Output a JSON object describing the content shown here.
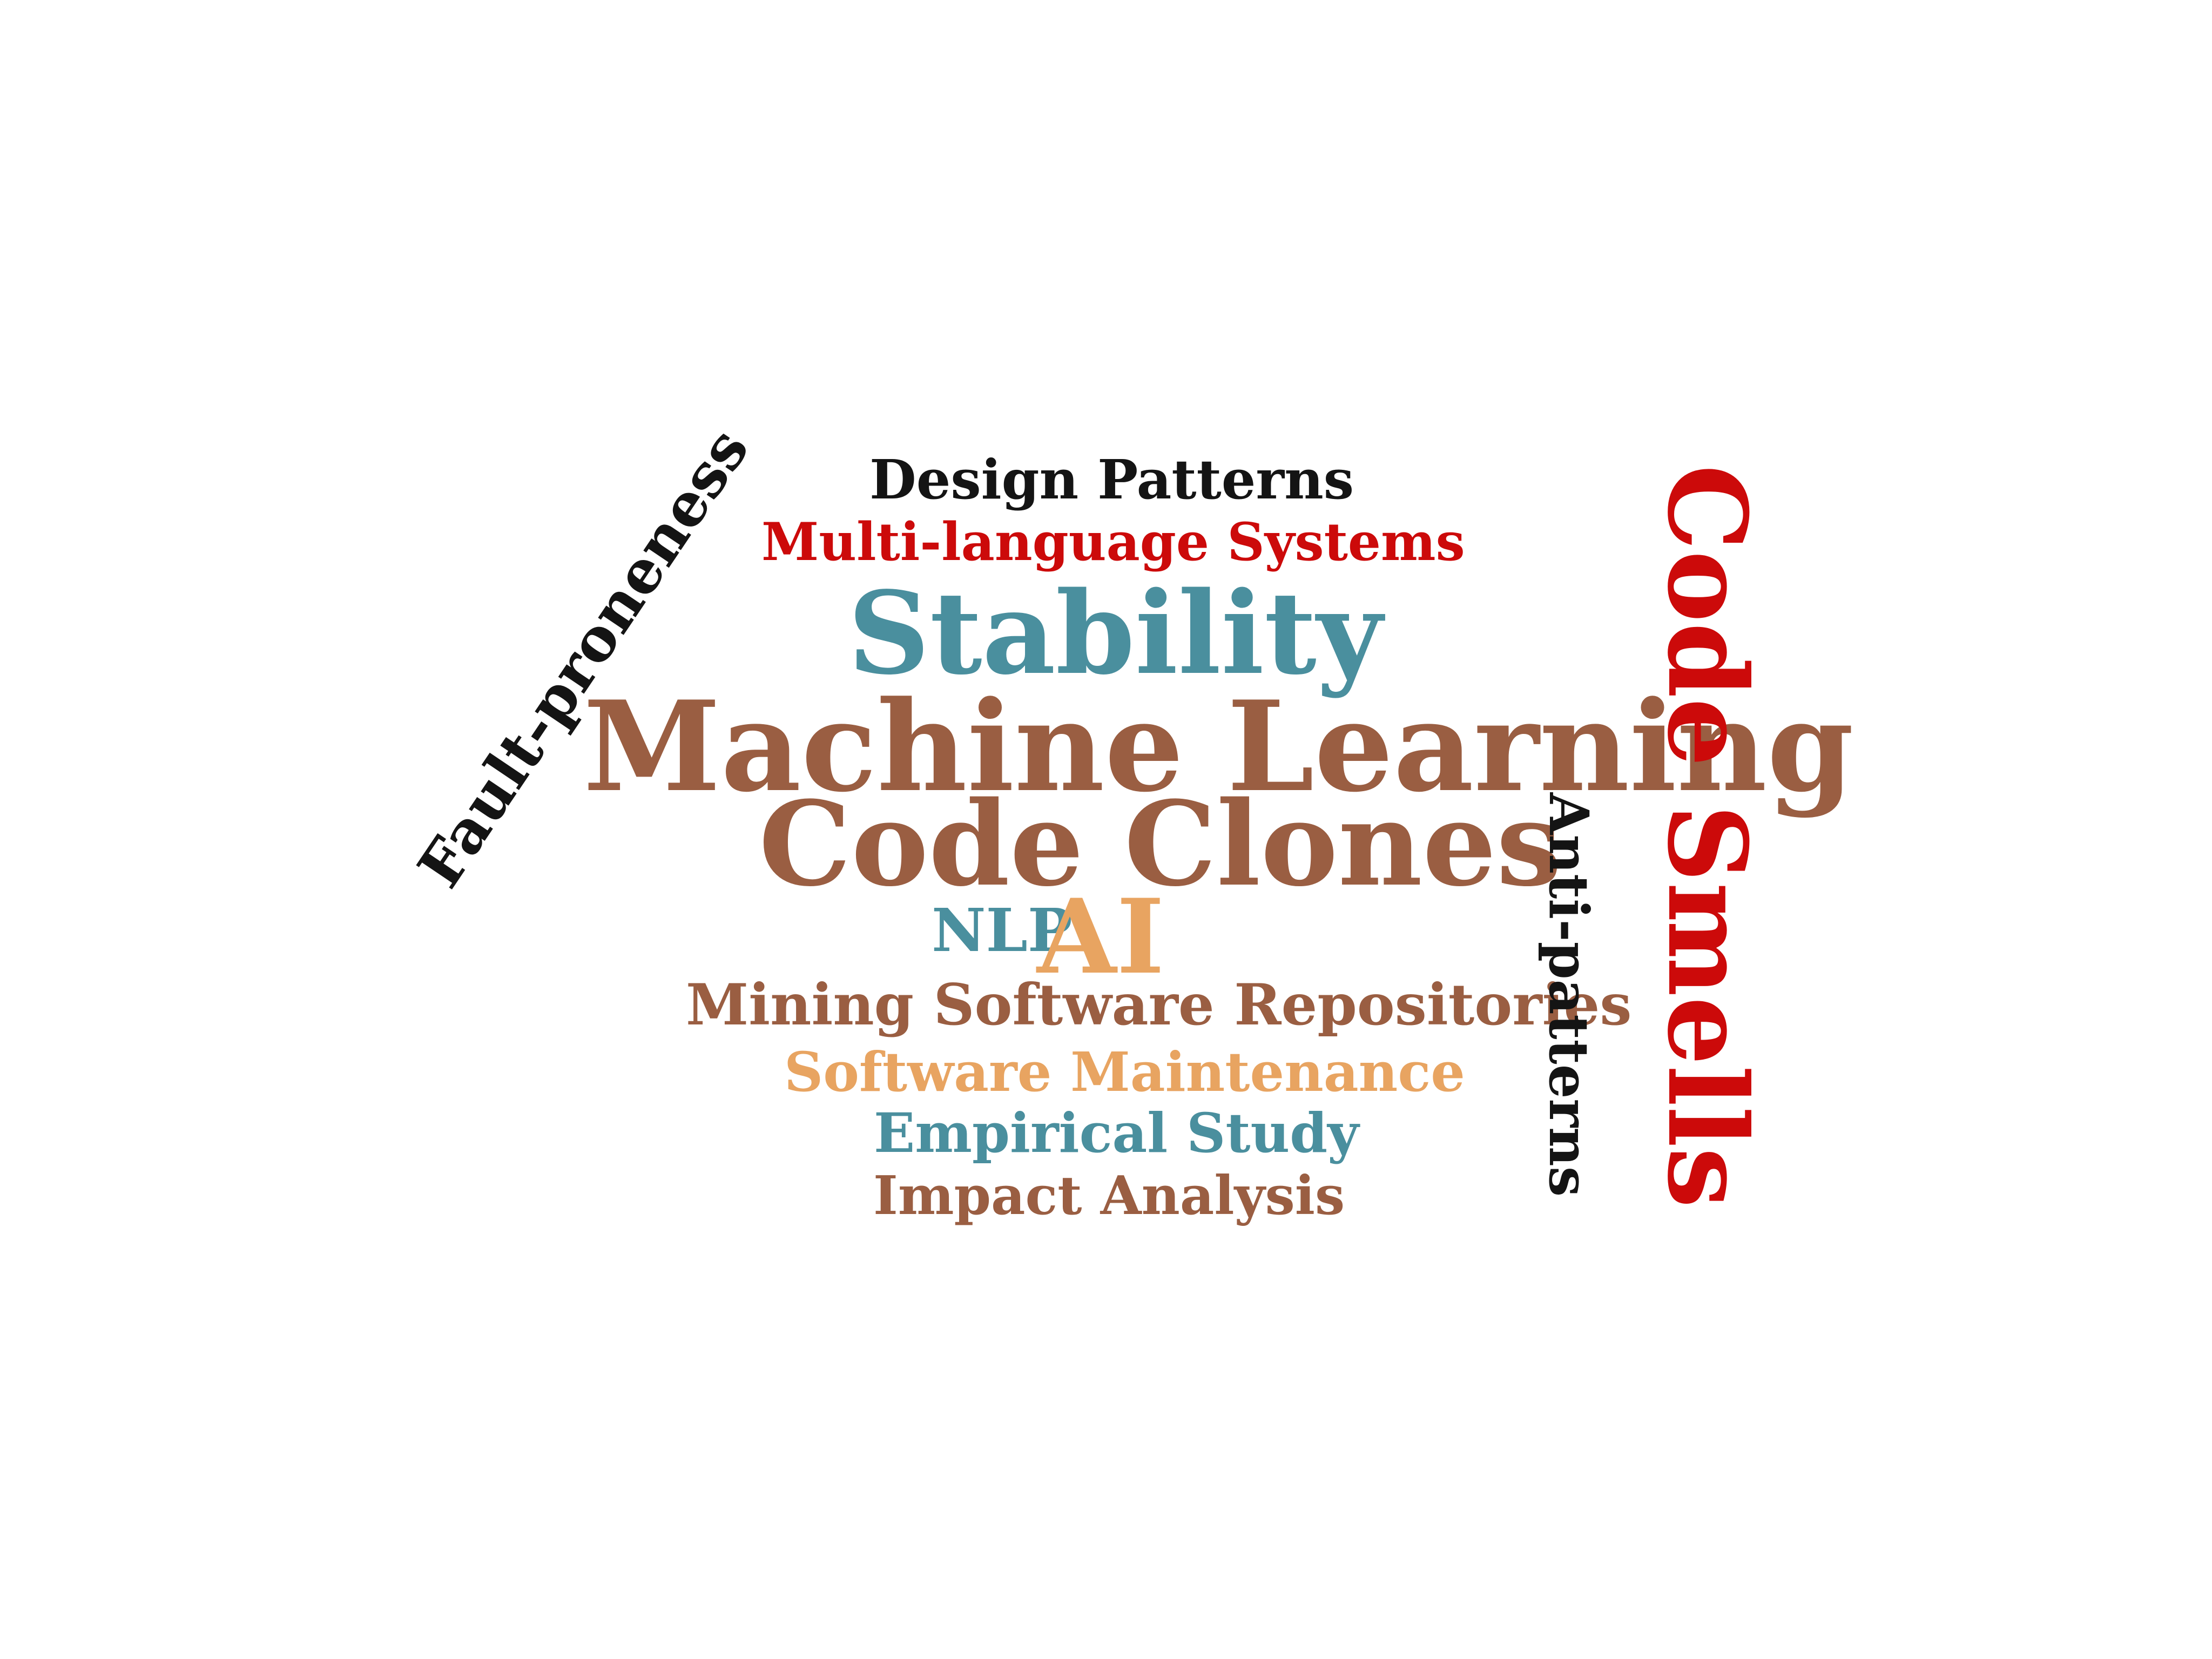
{
  "word_cloud": {
    "words": [
      {
        "text": "Design Patterns",
        "color": "#141414"
      },
      {
        "text": "Multi-language Systems",
        "color": "#cc0a0a"
      },
      {
        "text": "Stability",
        "color": "#4a8f9e"
      },
      {
        "text": "Machine Learning",
        "color": "#9a5e42"
      },
      {
        "text": "Code Clones",
        "color": "#9a5e42"
      },
      {
        "text": "NLP",
        "color": "#4a8f9e"
      },
      {
        "text": "AI",
        "color": "#e8a461"
      },
      {
        "text": "Mining Software Repositories",
        "color": "#9a5e42"
      },
      {
        "text": "Software Maintenance",
        "color": "#e8a461"
      },
      {
        "text": "Empirical Study",
        "color": "#4a8f9e"
      },
      {
        "text": "Impact Analysis",
        "color": "#9a5e42"
      },
      {
        "text": "Fault-proneness",
        "color": "#141414"
      },
      {
        "text": "Anti-patterns",
        "color": "#141414"
      },
      {
        "text": "Code Smells",
        "color": "#cc0a0a"
      }
    ]
  }
}
